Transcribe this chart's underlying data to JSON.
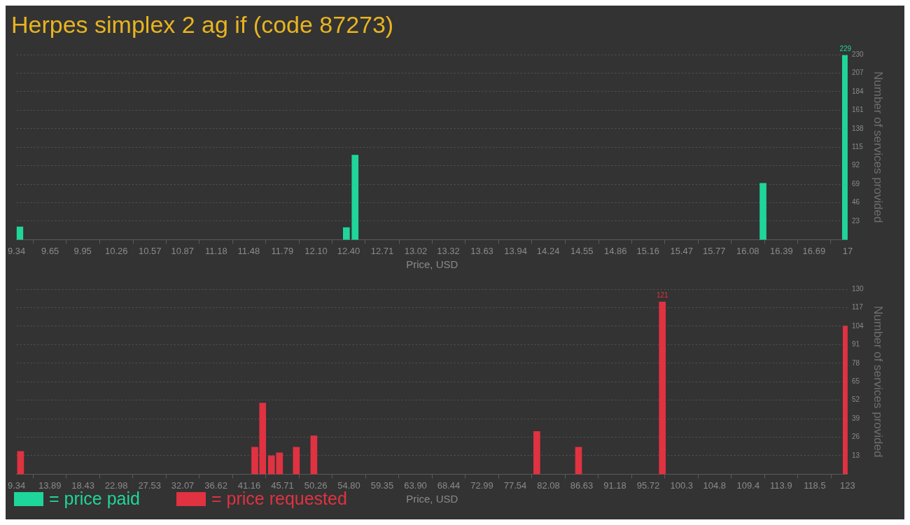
{
  "chart_data": [
    {
      "type": "bar",
      "title": "Herpes simplex 2 ag if (code 87273)",
      "xlabel": "Price, USD",
      "ylabel": "Number of services provided",
      "x": [
        9.37,
        12.38,
        12.46,
        16.22,
        16.98
      ],
      "series": [
        {
          "name": "= price paid",
          "color": "#1fd69a",
          "values": [
            16,
            15,
            105,
            70,
            229
          ],
          "value_labels": [
            null,
            null,
            null,
            null,
            "229"
          ]
        }
      ],
      "xlim": [
        9.34,
        17
      ],
      "xticks": [
        9.34,
        9.65,
        9.95,
        10.26,
        10.57,
        10.87,
        11.18,
        11.48,
        11.79,
        {
          "value": 12.1,
          "label": "12.10"
        },
        {
          "value": 12.4,
          "label": "12.40"
        },
        12.71,
        13.02,
        13.32,
        13.63,
        13.94,
        14.24,
        14.55,
        14.86,
        15.16,
        15.47,
        15.77,
        16.08,
        16.39,
        16.69,
        17
      ],
      "ylim": [
        0,
        230
      ],
      "yticks": [
        23,
        46,
        69,
        92,
        115,
        138,
        161,
        184,
        207,
        230
      ],
      "grid": "y",
      "legend": "bottom"
    },
    {
      "type": "bar",
      "xlabel": "Price, USD",
      "ylabel": "Number of services provided",
      "x": [
        9.89,
        41.92,
        43.0,
        44.2,
        45.3,
        47.6,
        50.0,
        80.49,
        86.2,
        97.66,
        122.8
      ],
      "series": [
        {
          "name": "= price requested",
          "color": "#e03241",
          "values": [
            16,
            19,
            50,
            13,
            15,
            19,
            27,
            30,
            19,
            121,
            104
          ],
          "value_labels": [
            null,
            null,
            null,
            null,
            null,
            null,
            null,
            null,
            null,
            "121",
            null
          ]
        }
      ],
      "xlim": [
        9.34,
        123
      ],
      "xticks": [
        9.34,
        13.89,
        18.43,
        22.98,
        27.53,
        32.07,
        36.62,
        41.16,
        45.71,
        50.26,
        {
          "value": 54.8,
          "label": "54.80"
        },
        59.35,
        {
          "value": 63.9,
          "label": "63.90"
        },
        68.44,
        72.99,
        77.54,
        82.08,
        86.63,
        91.18,
        95.72,
        100.3,
        104.8,
        109.4,
        113.9,
        118.5,
        123
      ],
      "ylim": [
        0,
        130
      ],
      "yticks": [
        13,
        26,
        39,
        52,
        65,
        78,
        91,
        104,
        117,
        130
      ],
      "grid": "y",
      "legend": "bottom"
    }
  ]
}
